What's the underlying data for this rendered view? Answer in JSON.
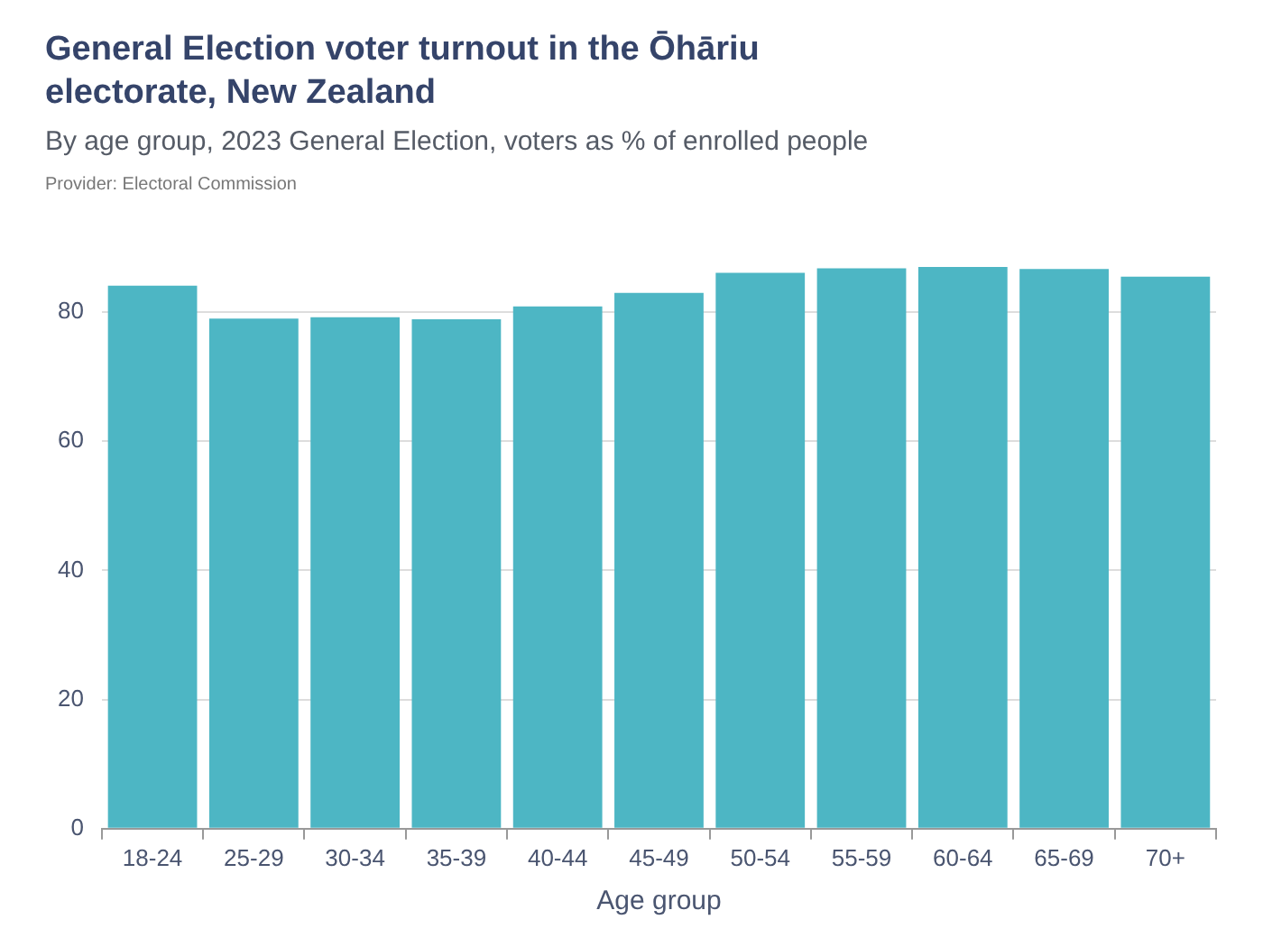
{
  "chart_data": {
    "type": "bar",
    "title": "General Election voter turnout in the Ōhāriu electorate, New Zealand",
    "subtitle": "By age group, 2023 General Election, voters as % of enrolled people",
    "annotations": [
      "Provider: Electoral Commission"
    ],
    "xlabel": "Age group",
    "categories": [
      "18-24",
      "25-29",
      "30-34",
      "35-39",
      "40-44",
      "45-49",
      "50-54",
      "55-59",
      "60-64",
      "65-69",
      "70+"
    ],
    "values": [
      84.1,
      79.0,
      79.2,
      78.9,
      80.9,
      83.0,
      86.1,
      86.8,
      87.0,
      86.7,
      85.5
    ],
    "color": "#4db6c4",
    "ylim": [
      0,
      87
    ],
    "yticks": [
      0,
      20,
      40,
      60,
      80
    ],
    "grid": "y",
    "legend": false
  }
}
